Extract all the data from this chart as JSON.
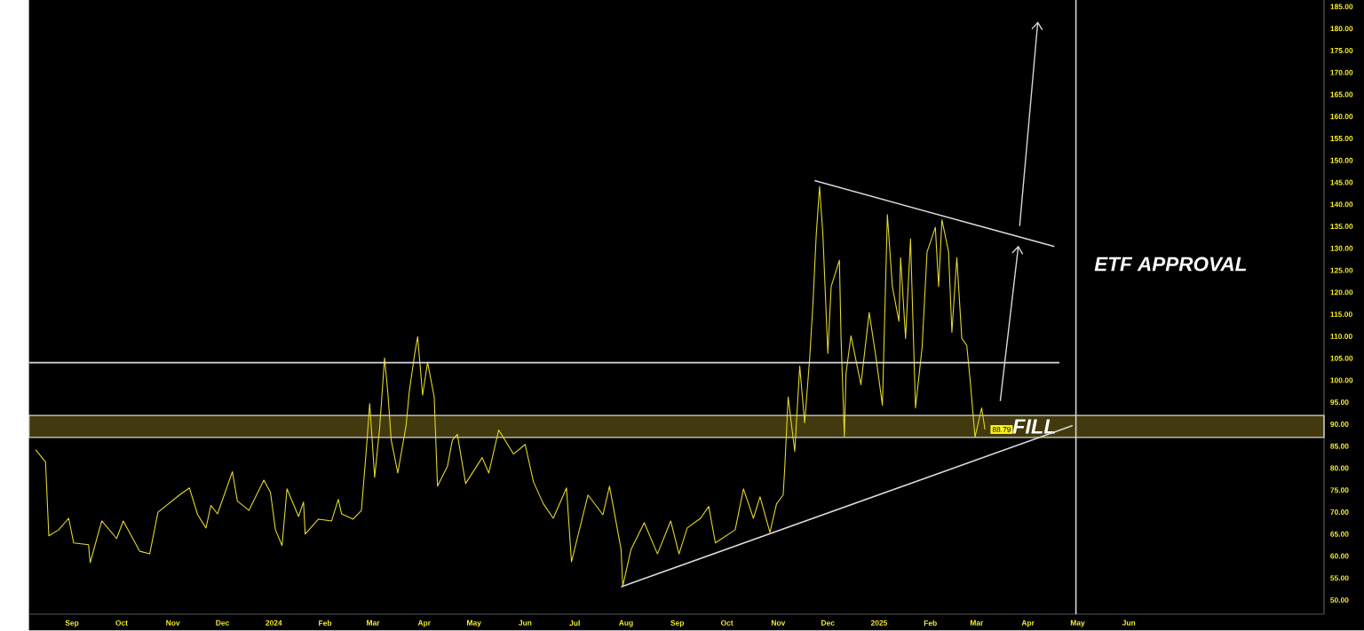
{
  "chart_data": {
    "type": "line",
    "xlim": [
      "2023-08-06",
      "2025-09-27"
    ],
    "ylim": [
      46.8,
      186.5
    ],
    "xticks": [
      {
        "value": "2023-09-01",
        "label": "Sep"
      },
      {
        "value": "2023-10-01",
        "label": "Oct"
      },
      {
        "value": "2023-11-01",
        "label": "Nov"
      },
      {
        "value": "2023-12-01",
        "label": "Dec"
      },
      {
        "value": "2024-01-01",
        "label": "2024"
      },
      {
        "value": "2024-02-01",
        "label": "Feb"
      },
      {
        "value": "2024-03-01",
        "label": "Mar"
      },
      {
        "value": "2024-04-01",
        "label": "Apr"
      },
      {
        "value": "2024-05-01",
        "label": "May"
      },
      {
        "value": "2024-06-01",
        "label": "Jun"
      },
      {
        "value": "2024-07-01",
        "label": "Jul"
      },
      {
        "value": "2024-08-01",
        "label": "Aug"
      },
      {
        "value": "2024-09-01",
        "label": "Sep"
      },
      {
        "value": "2024-10-01",
        "label": "Oct"
      },
      {
        "value": "2024-11-01",
        "label": "Nov"
      },
      {
        "value": "2024-12-01",
        "label": "Dec"
      },
      {
        "value": "2025-01-01",
        "label": "2025"
      },
      {
        "value": "2025-02-01",
        "label": "Feb"
      },
      {
        "value": "2025-03-01",
        "label": "Mar"
      },
      {
        "value": "2025-04-01",
        "label": "Apr"
      },
      {
        "value": "2025-05-01",
        "label": "May"
      },
      {
        "value": "2025-06-01",
        "label": "Jun"
      }
    ],
    "yticks": [
      {
        "value": 50,
        "label": "50.00"
      },
      {
        "value": 55,
        "label": "55.00"
      },
      {
        "value": 60,
        "label": "60.00"
      },
      {
        "value": 65,
        "label": "65.00"
      },
      {
        "value": 70,
        "label": "70.00"
      },
      {
        "value": 75,
        "label": "75.00"
      },
      {
        "value": 80,
        "label": "80.00"
      },
      {
        "value": 85,
        "label": "85.00"
      },
      {
        "value": 90,
        "label": "90.00"
      },
      {
        "value": 95,
        "label": "95.00"
      },
      {
        "value": 100,
        "label": "100.00"
      },
      {
        "value": 105,
        "label": "105.00"
      },
      {
        "value": 110,
        "label": "110.00"
      },
      {
        "value": 115,
        "label": "115.00"
      },
      {
        "value": 120,
        "label": "120.00"
      },
      {
        "value": 125,
        "label": "125.00"
      },
      {
        "value": 130,
        "label": "130.00"
      },
      {
        "value": 135,
        "label": "135.00"
      },
      {
        "value": 140,
        "label": "140.00"
      },
      {
        "value": 145,
        "label": "145.00"
      },
      {
        "value": 150,
        "label": "150.00"
      },
      {
        "value": 155,
        "label": "155.00"
      },
      {
        "value": 160,
        "label": "160.00"
      },
      {
        "value": 165,
        "label": "165.00"
      },
      {
        "value": 170,
        "label": "170.00"
      },
      {
        "value": 175,
        "label": "175.00"
      },
      {
        "value": 180,
        "label": "180.00"
      },
      {
        "value": 185,
        "label": "185.00"
      }
    ],
    "series": [
      {
        "color": "#e6d92a",
        "x": [
          "2023-08-10",
          "2023-08-16",
          "2023-08-18",
          "2023-08-24",
          "2023-08-30",
          "2023-09-02",
          "2023-09-11",
          "2023-09-12",
          "2023-09-19",
          "2023-09-28",
          "2023-10-02",
          "2023-10-12",
          "2023-10-18",
          "2023-10-23",
          "2023-11-05",
          "2023-11-11",
          "2023-11-16",
          "2023-11-21",
          "2023-11-24",
          "2023-11-28",
          "2023-12-07",
          "2023-12-10",
          "2023-12-17",
          "2023-12-26",
          "2023-12-30",
          "2024-01-02",
          "2024-01-06",
          "2024-01-09",
          "2024-01-16",
          "2024-01-19",
          "2024-01-20",
          "2024-01-28",
          "2024-02-05",
          "2024-02-09",
          "2024-02-11",
          "2024-02-18",
          "2024-02-23",
          "2024-02-26",
          "2024-02-28",
          "2024-03-02",
          "2024-03-05",
          "2024-03-08",
          "2024-03-10",
          "2024-03-12",
          "2024-03-16",
          "2024-03-21",
          "2024-03-23",
          "2024-03-26",
          "2024-03-28",
          "2024-03-31",
          "2024-04-03",
          "2024-04-07",
          "2024-04-09",
          "2024-04-15",
          "2024-04-18",
          "2024-04-21",
          "2024-04-26",
          "2024-05-06",
          "2024-05-10",
          "2024-05-16",
          "2024-05-25",
          "2024-06-01",
          "2024-06-06",
          "2024-06-12",
          "2024-06-18",
          "2024-06-26",
          "2024-06-29",
          "2024-07-09",
          "2024-07-18",
          "2024-07-22",
          "2024-07-29",
          "2024-07-30",
          "2024-08-04",
          "2024-08-12",
          "2024-08-20",
          "2024-08-28",
          "2024-09-02",
          "2024-09-07",
          "2024-09-15",
          "2024-09-20",
          "2024-09-24",
          "2024-10-06",
          "2024-10-11",
          "2024-10-17",
          "2024-10-21",
          "2024-10-27",
          "2024-10-31",
          "2024-11-04",
          "2024-11-05",
          "2024-11-07",
          "2024-11-11",
          "2024-11-14",
          "2024-11-17",
          "2024-11-20",
          "2024-11-22",
          "2024-11-24",
          "2024-11-26",
          "2024-11-28",
          "2024-12-01",
          "2024-12-03",
          "2024-12-08",
          "2024-12-09",
          "2024-12-11",
          "2024-12-12",
          "2024-12-15",
          "2024-12-21",
          "2024-12-26",
          "2024-12-30",
          "2025-01-03",
          "2025-01-06",
          "2025-01-09",
          "2025-01-13",
          "2025-01-14",
          "2025-01-17",
          "2025-01-20",
          "2025-01-23",
          "2025-01-27",
          "2025-01-30",
          "2025-02-04",
          "2025-02-06",
          "2025-02-08",
          "2025-02-12",
          "2025-02-14",
          "2025-02-17",
          "2025-02-20",
          "2025-02-23",
          "2025-02-25",
          "2025-02-28",
          "2025-03-04",
          "2025-03-06"
        ],
        "values": [
          84.2,
          81.4,
          64.6,
          66.0,
          68.6,
          63.0,
          62.6,
          58.5,
          68.0,
          64.0,
          68.0,
          61.1,
          60.5,
          70.0,
          73.9,
          75.5,
          69.4,
          66.4,
          71.5,
          69.6,
          79.2,
          72.5,
          70.4,
          77.3,
          74.5,
          66.0,
          62.4,
          75.3,
          69.0,
          72.3,
          65.0,
          68.4,
          68.0,
          72.9,
          69.6,
          68.4,
          70.4,
          84.4,
          94.7,
          77.9,
          89.1,
          105.1,
          97.0,
          86.4,
          78.9,
          89.7,
          97.6,
          105.5,
          109.9,
          96.6,
          104.1,
          96.2,
          75.9,
          80.4,
          86.4,
          87.7,
          76.5,
          82.4,
          78.9,
          88.7,
          83.2,
          85.4,
          76.9,
          71.9,
          68.6,
          75.5,
          58.7,
          73.9,
          69.4,
          75.9,
          61.5,
          53.2,
          61.5,
          67.6,
          60.5,
          68.0,
          60.5,
          66.4,
          68.6,
          71.3,
          63.0,
          66.0,
          75.3,
          68.6,
          73.5,
          65.4,
          71.9,
          73.9,
          80.4,
          96.2,
          83.8,
          103.2,
          90.3,
          104.9,
          117.4,
          133.2,
          144.1,
          133.2,
          106.1,
          121.3,
          127.3,
          109.5,
          87.1,
          101.6,
          110.1,
          99.0,
          115.4,
          105.5,
          94.3,
          137.7,
          121.3,
          113.4,
          127.9,
          109.5,
          132.2,
          93.7,
          107.5,
          129.2,
          134.8,
          121.3,
          136.5,
          129.2,
          110.9,
          127.9,
          109.5,
          107.9,
          100.2,
          87.1,
          93.7,
          88.79
        ]
      },
      {
        "type": "line",
        "color": "#d9d9d9",
        "x": [
          "2023-08-06",
          "2025-04-20"
        ],
        "values": [
          104,
          104
        ]
      },
      {
        "type": "line",
        "color": "#d9d9d9",
        "x": [
          "2024-07-29",
          "2025-04-28"
        ],
        "values": [
          53.0,
          89.7
        ]
      },
      {
        "type": "line",
        "color": "#d9d9d9",
        "x": [
          "2024-11-23",
          "2025-04-17"
        ],
        "values": [
          145.4,
          130.4
        ]
      }
    ],
    "ref_lines": [
      {
        "axis": "x",
        "value": "2025-04-30",
        "label": "ETF APPROVAL",
        "color": "#d9d9d9"
      }
    ],
    "bands": [
      {
        "axis": "y",
        "from": 87,
        "to": 92,
        "label": "FILL",
        "color": "#4d4410"
      }
    ],
    "annotations": [
      {
        "text": "88.79",
        "x": "2025-03-06",
        "y": 88.79
      }
    ]
  }
}
